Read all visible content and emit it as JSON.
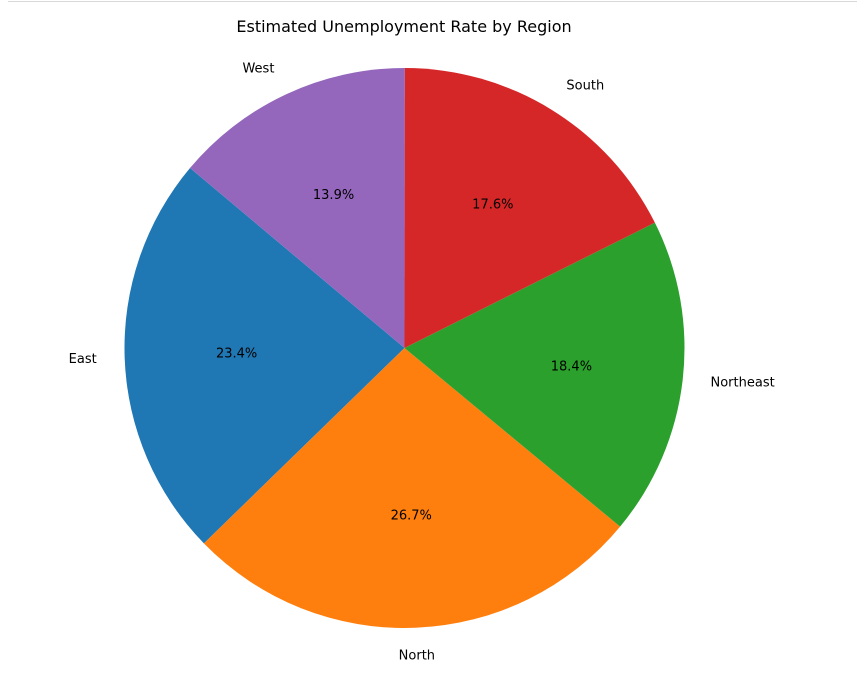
{
  "chart_data": {
    "type": "pie",
    "title": "Estimated Unemployment Rate by Region",
    "categories": [
      "East",
      "North",
      "Northeast",
      "South",
      "West"
    ],
    "values": [
      23.4,
      26.7,
      18.4,
      17.6,
      13.9
    ],
    "percent_labels": [
      "23.4%",
      "26.7%",
      "18.4%",
      "17.6%",
      "13.9%"
    ],
    "colors": [
      "#1f77b4",
      "#ff7f0e",
      "#2ca02c",
      "#d62728",
      "#9467bd"
    ],
    "start_angle_deg": 140,
    "direction": "counterclockwise",
    "legend": "none"
  }
}
